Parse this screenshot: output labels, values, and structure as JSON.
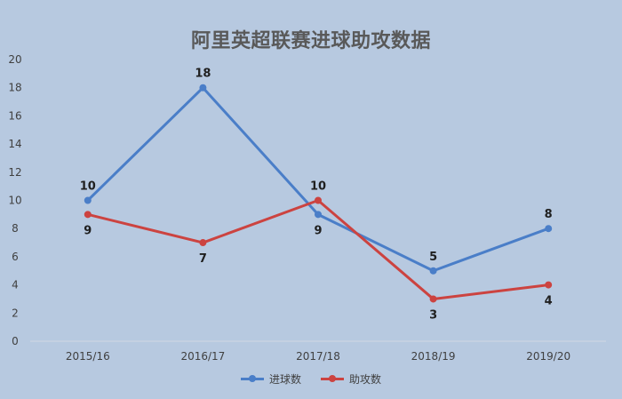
{
  "chart_data": {
    "type": "line",
    "title": "阿里英超联赛进球助攻数据",
    "categories": [
      "2015/16",
      "2016/17",
      "2017/18",
      "2018/19",
      "2019/20"
    ],
    "series": [
      {
        "name": "进球数",
        "values": [
          10,
          18,
          9,
          5,
          8
        ],
        "color": "#4a7ec8",
        "labels": [
          "10",
          "18",
          "9",
          "5",
          "8"
        ]
      },
      {
        "name": "助攻数",
        "values": [
          9,
          7,
          10,
          3,
          4
        ],
        "color": "#cc4340",
        "labels": [
          "9",
          "7",
          "10",
          "3",
          "4"
        ]
      }
    ],
    "ylim": [
      0,
      20
    ],
    "yticks": [
      "0",
      "2",
      "4",
      "6",
      "8",
      "10",
      "12",
      "14",
      "16",
      "18",
      "20"
    ],
    "grid": false,
    "legend_position": "bottom"
  }
}
